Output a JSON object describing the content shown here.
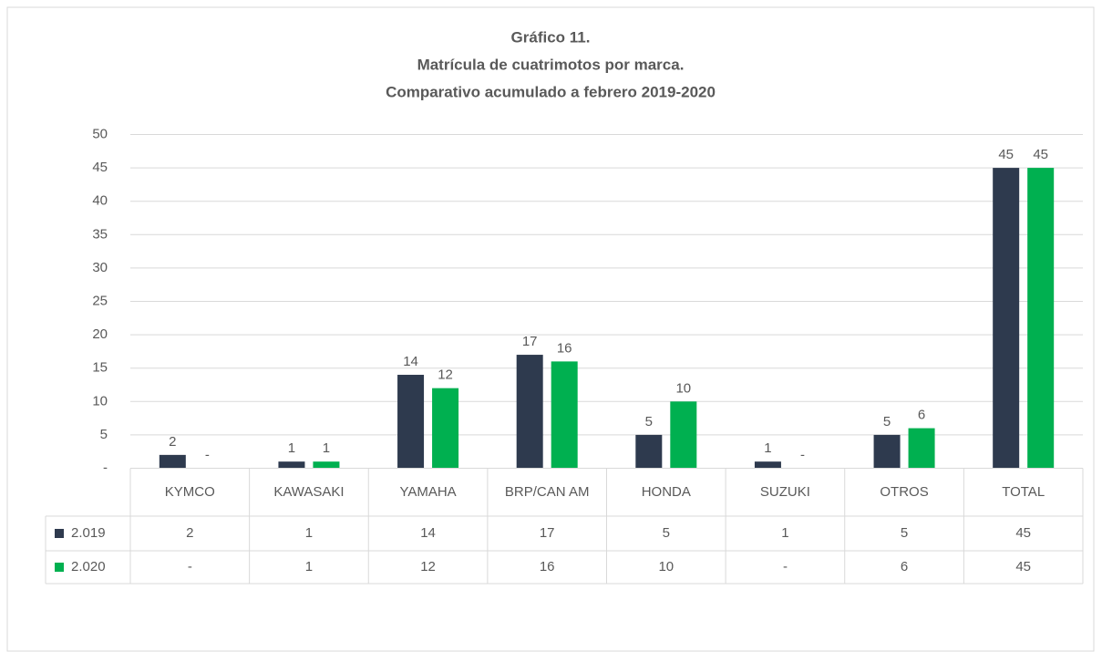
{
  "chart_data": {
    "type": "bar",
    "title": "Gráfico 11.",
    "subtitle": [
      "Matrícula de cuatrimotos por marca.",
      "Comparativo acumulado a febrero 2019-2020"
    ],
    "categories": [
      "KYMCO",
      "KAWASAKI",
      "YAMAHA",
      "BRP/CAN AM",
      "HONDA",
      "SUZUKI",
      "OTROS",
      "TOTAL"
    ],
    "series": [
      {
        "name": "2.019",
        "color": "#2e3a4e",
        "values": [
          2,
          1,
          14,
          17,
          5,
          1,
          5,
          45
        ]
      },
      {
        "name": "2.020",
        "color": "#00b050",
        "values": [
          0,
          1,
          12,
          16,
          10,
          0,
          6,
          45
        ],
        "value_labels": [
          "-",
          "1",
          "12",
          "16",
          "10",
          "-",
          "6",
          "45"
        ]
      }
    ],
    "ylim": [
      0,
      50
    ],
    "yticks": [
      {
        "value": 0,
        "label": "-"
      },
      5,
      10,
      15,
      20,
      25,
      30,
      35,
      40,
      45,
      50
    ],
    "grid": true,
    "data_table": true
  }
}
